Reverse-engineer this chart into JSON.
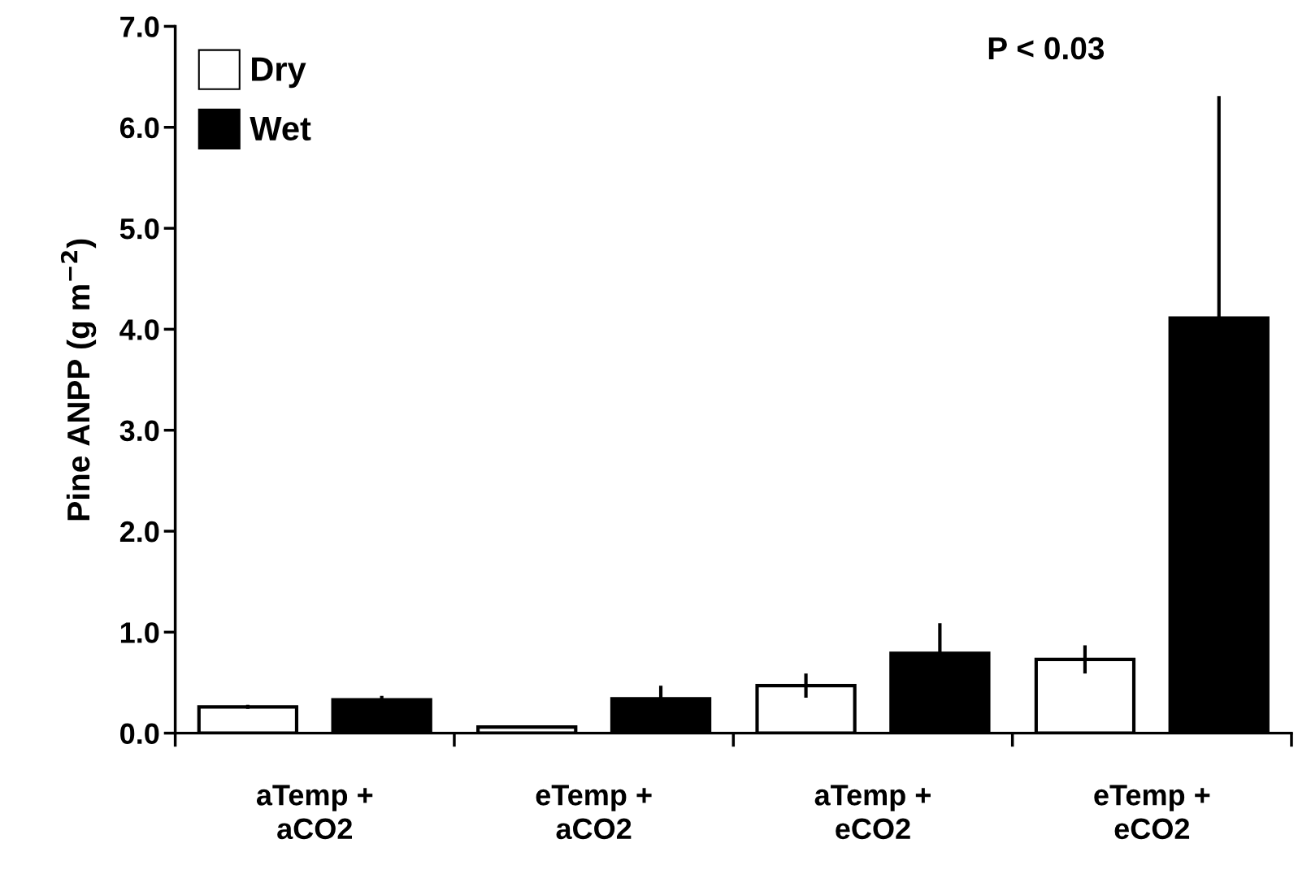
{
  "chart_data": {
    "type": "bar",
    "ylabel": "Pine ANPP (g m$^{−2}$)",
    "categories": [
      "aTemp +\naCO2",
      "eTemp +\naCO2",
      "aTemp +\neCO2",
      "eTemp +\neCO2"
    ],
    "series": [
      {
        "name": "Dry",
        "color": "#ffffff",
        "values": [
          0.26,
          0.06,
          0.47,
          0.73
        ],
        "errors": [
          0.02,
          null,
          0.12,
          0.14
        ]
      },
      {
        "name": "Wet",
        "color": "#000000",
        "values": [
          0.33,
          0.34,
          0.79,
          4.11
        ],
        "errors": [
          0.04,
          0.13,
          0.3,
          2.2
        ]
      }
    ],
    "ylim": [
      0,
      7.0
    ],
    "yticks": [
      {
        "value": 0,
        "label": "0.0"
      },
      {
        "value": 1,
        "label": "1.0"
      },
      {
        "value": 2,
        "label": "2.0"
      },
      {
        "value": 3,
        "label": "3.0"
      },
      {
        "value": 4,
        "label": "4.0"
      },
      {
        "value": 5,
        "label": "5.0"
      },
      {
        "value": 6,
        "label": "6.0"
      },
      {
        "value": 7,
        "label": "7.0"
      }
    ],
    "annotations": [
      "P < 0.03"
    ],
    "legend": "top left",
    "grid": false
  }
}
